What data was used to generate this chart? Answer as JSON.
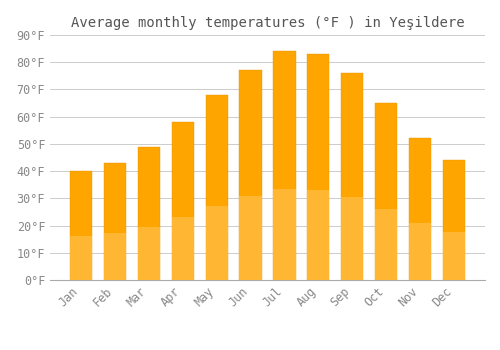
{
  "title": "Average monthly temperatures (°F ) in Yeşildere",
  "months": [
    "Jan",
    "Feb",
    "Mar",
    "Apr",
    "May",
    "Jun",
    "Jul",
    "Aug",
    "Sep",
    "Oct",
    "Nov",
    "Dec"
  ],
  "values": [
    40,
    43,
    49,
    58,
    68,
    77,
    84,
    83,
    76,
    65,
    52,
    44
  ],
  "bar_color_top": "#FFA500",
  "bar_color_bottom": "#FFB733",
  "bar_edge_color": "#E8960A",
  "background_color": "#FFFFFF",
  "grid_color": "#CCCCCC",
  "ylim": [
    0,
    90
  ],
  "yticks": [
    0,
    10,
    20,
    30,
    40,
    50,
    60,
    70,
    80,
    90
  ],
  "title_fontsize": 10,
  "tick_fontsize": 8.5,
  "tick_color": "#888888",
  "title_color": "#555555"
}
